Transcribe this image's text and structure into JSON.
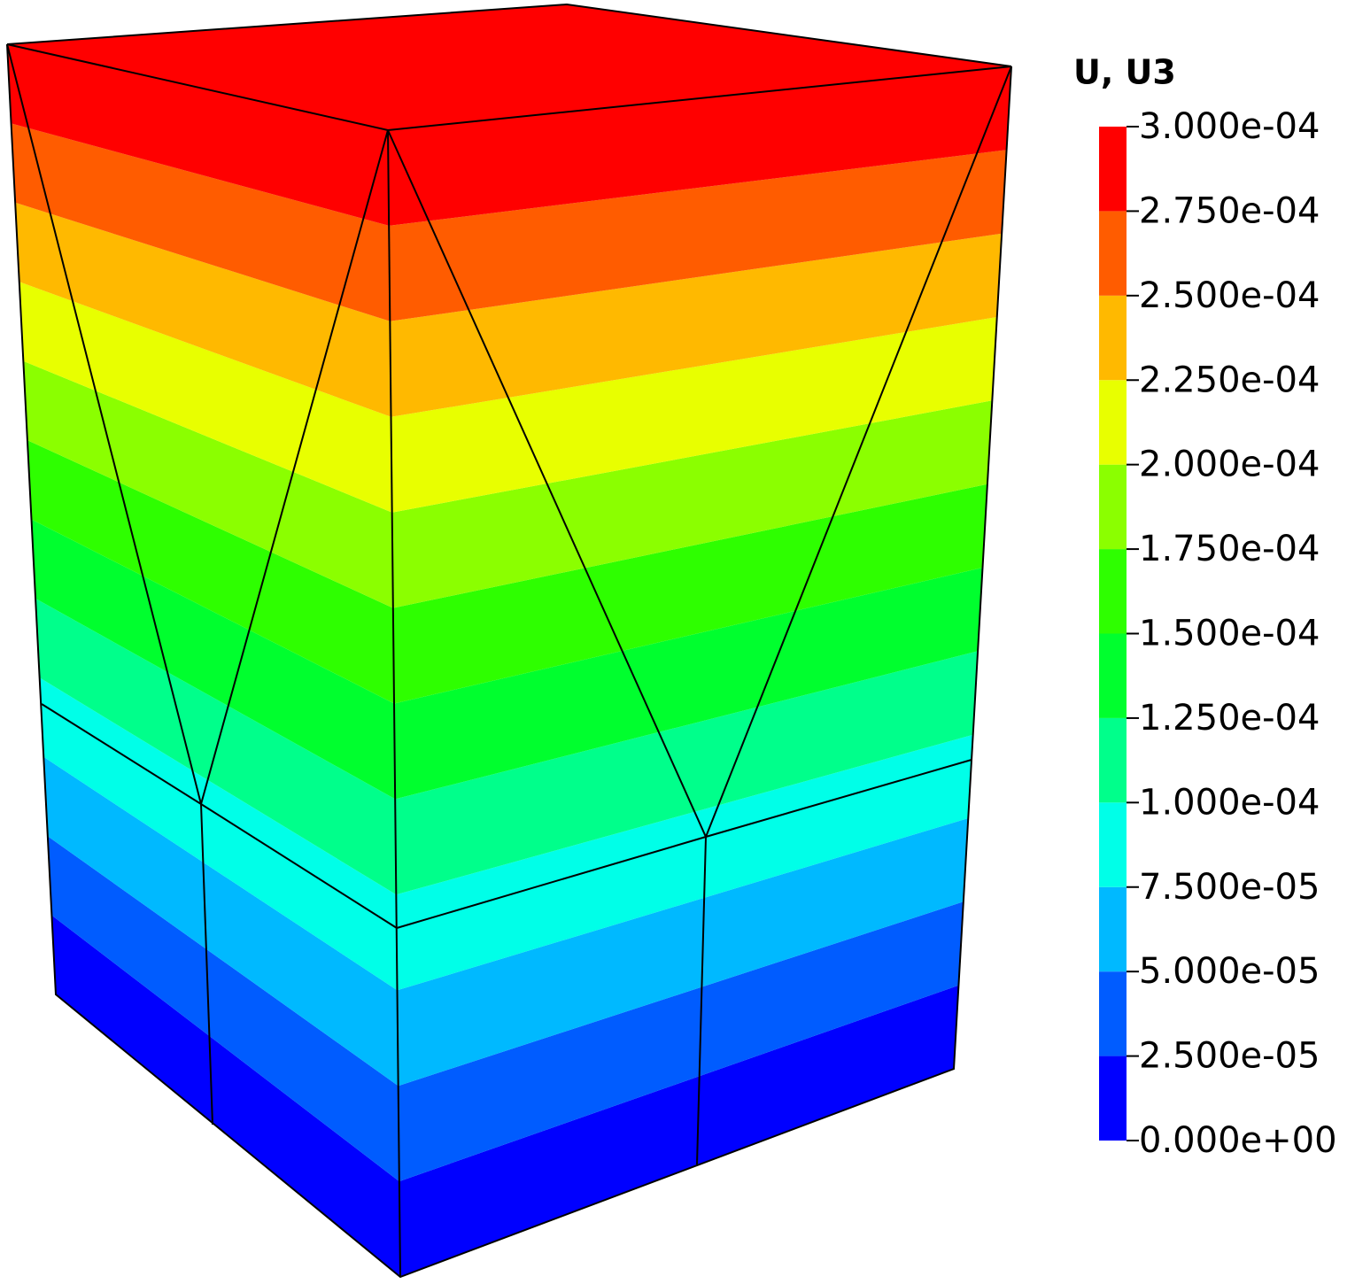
{
  "chart_data": {
    "type": "contour",
    "title": "U,  U3",
    "vlim": [
      0,
      0.0003
    ],
    "ticks": [
      {
        "value": 0,
        "label": "0.000e+00"
      },
      {
        "value": 2.5e-05,
        "label": "2.500e-05"
      },
      {
        "value": 5e-05,
        "label": "5.000e-05"
      },
      {
        "value": 7.5e-05,
        "label": "7.500e-05"
      },
      {
        "value": 0.0001,
        "label": "1.000e-04"
      },
      {
        "value": 0.000125,
        "label": "1.250e-04"
      },
      {
        "value": 0.00015,
        "label": "1.500e-04"
      },
      {
        "value": 0.000175,
        "label": "1.750e-04"
      },
      {
        "value": 0.0002,
        "label": "2.000e-04"
      },
      {
        "value": 0.000225,
        "label": "2.250e-04"
      },
      {
        "value": 0.00025,
        "label": "2.500e-04"
      },
      {
        "value": 0.000275,
        "label": "2.750e-04"
      },
      {
        "value": 0.0003,
        "label": "3.000e-04"
      }
    ],
    "colors": [
      "#0000ff",
      "#005cff",
      "#00b9ff",
      "#00ffe8",
      "#00ff8b",
      "#00ff2e",
      "#2eff00",
      "#8bff00",
      "#e8ff00",
      "#ffb900",
      "#ff5c00",
      "#ff0000"
    ]
  }
}
